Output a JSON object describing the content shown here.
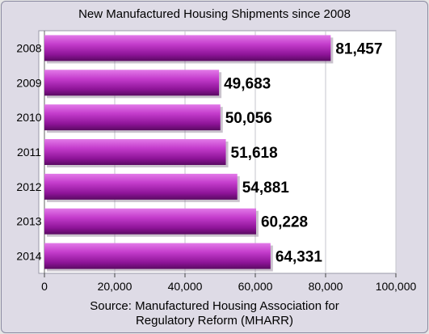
{
  "chart_data": {
    "type": "bar",
    "orientation": "horizontal",
    "title": "New Manufactured Housing Shipments since 2008",
    "categories": [
      "2008",
      "2009",
      "2010",
      "2011",
      "2012",
      "2013",
      "2014"
    ],
    "values": [
      81457,
      49683,
      50056,
      51618,
      54881,
      60228,
      64331
    ],
    "value_labels": [
      "81,457",
      "49,683",
      "50,056",
      "51,618",
      "54,881",
      "60,228",
      "64,331"
    ],
    "xlim": [
      0,
      100000
    ],
    "x_ticks": [
      0,
      20000,
      40000,
      60000,
      80000,
      100000
    ],
    "x_tick_labels": [
      "0",
      "20,000",
      "40,000",
      "60,000",
      "80,000",
      "100,000"
    ],
    "grid": true,
    "legend": "none",
    "bar_color": "#a020a8",
    "source_line1": "Source: Manufactured Housing Association for",
    "source_line2": "Regulatory Reform (MHARR)"
  }
}
